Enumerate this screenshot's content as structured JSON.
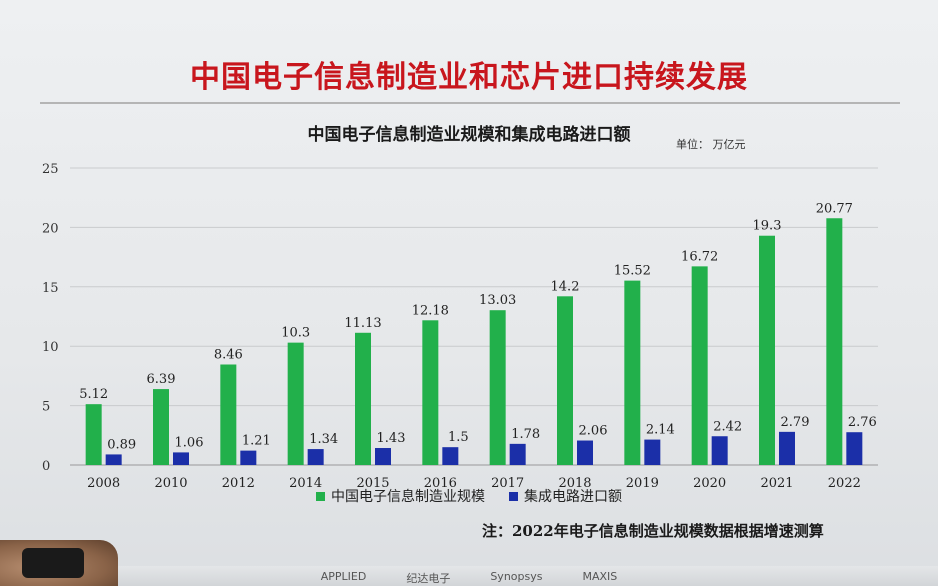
{
  "slide": {
    "main_title": "中国电子信息制造业和芯片进口持续发展",
    "unit_label": "单位： 万亿元",
    "note": "注：2022年电子信息制造业规模数据根据增速测算",
    "logos": [
      "APPLIED",
      "纪达电子",
      "Synopsys",
      "MAXIS",
      "",
      ""
    ]
  },
  "chart_data": {
    "type": "bar",
    "title": "中国电子信息制造业规模和集成电路进口额",
    "ylim": [
      0,
      25
    ],
    "y_ticks": [
      0,
      5,
      10,
      15,
      20,
      25
    ],
    "grid": true,
    "legend_position": "bottom",
    "categories": [
      "2008",
      "2010",
      "2012",
      "2014",
      "2015",
      "2016",
      "2017",
      "2018",
      "2019",
      "2020",
      "2021",
      "2022"
    ],
    "series": [
      {
        "name": "中国电子信息制造业规模",
        "color": "#22b04b",
        "values": [
          5.12,
          6.39,
          8.46,
          10.3,
          11.13,
          12.18,
          13.03,
          14.2,
          15.52,
          16.72,
          19.3,
          20.77
        ]
      },
      {
        "name": "集成电路进口额",
        "color": "#1b2fa8",
        "values": [
          0.89,
          1.06,
          1.21,
          1.34,
          1.43,
          1.5,
          1.78,
          2.06,
          2.14,
          2.42,
          2.79,
          2.76
        ]
      }
    ]
  }
}
